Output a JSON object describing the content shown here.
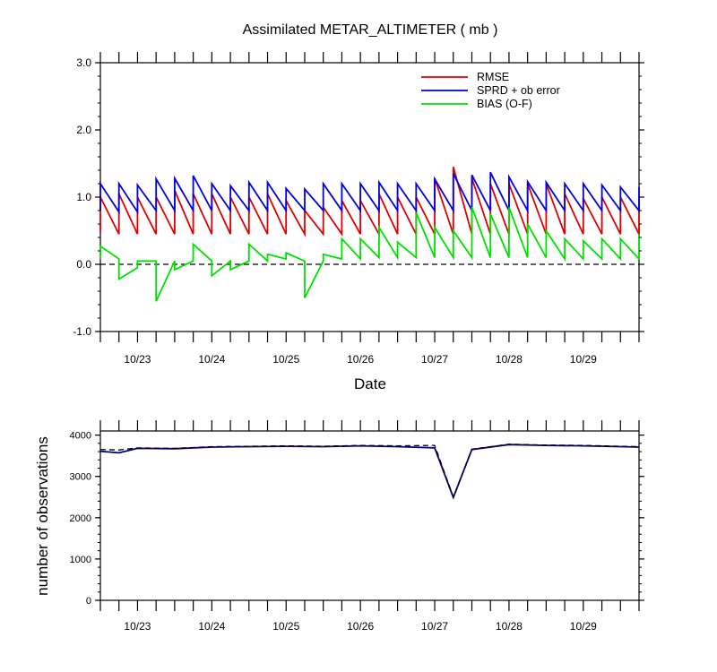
{
  "chart_data": [
    {
      "type": "line",
      "title": "Assimilated METAR_ALTIMETER ( mb )",
      "xlabel": "Date",
      "ylabel": "",
      "ylim": [
        -1.0,
        3.0
      ],
      "xlim": [
        "10/22 12:00",
        "10/29 18:00"
      ],
      "yticks": [
        "-1.0",
        "0.0",
        "1.0",
        "2.0",
        "3.0"
      ],
      "xticks": [
        "10/23",
        "10/24",
        "10/25",
        "10/26",
        "10/27",
        "10/28",
        "10/29"
      ],
      "reference_line": 0,
      "legend_position": "top-right",
      "x": [
        "10/22 12:00",
        "10/22 18:00",
        "10/23 00:00",
        "10/23 06:00",
        "10/23 12:00",
        "10/23 18:00",
        "10/24 00:00",
        "10/24 06:00",
        "10/24 12:00",
        "10/24 18:00",
        "10/25 00:00",
        "10/25 06:00",
        "10/25 12:00",
        "10/25 18:00",
        "10/26 00:00",
        "10/26 06:00",
        "10/26 12:00",
        "10/26 18:00",
        "10/27 00:00",
        "10/27 06:00",
        "10/27 12:00",
        "10/27 18:00",
        "10/28 00:00",
        "10/28 06:00",
        "10/28 12:00",
        "10/28 18:00",
        "10/29 00:00",
        "10/29 06:00",
        "10/29 12:00",
        "10/29 18:00"
      ],
      "series": [
        {
          "name": "RMSE",
          "color": "#e00000",
          "prior": [
            0.47,
            0.45,
            0.45,
            0.45,
            0.45,
            0.45,
            0.45,
            0.45,
            0.45,
            0.45,
            0.45,
            0.45,
            0.45,
            0.45,
            0.45,
            0.45,
            0.45,
            0.45,
            0.45,
            0.45,
            0.45,
            0.45,
            0.45,
            0.45,
            0.45,
            0.45,
            0.45,
            0.45,
            0.45,
            0.45
          ],
          "posterior": [
            1.0,
            1.05,
            1.0,
            1.0,
            1.1,
            1.05,
            1.05,
            1.0,
            1.0,
            1.05,
            0.95,
            0.8,
            0.85,
            0.95,
            0.95,
            1.05,
            1.0,
            1.0,
            1.28,
            1.45,
            1.28,
            1.2,
            1.2,
            1.2,
            1.2,
            1.05,
            0.98,
            1.0,
            1.0,
            1.0
          ]
        },
        {
          "name": "SPRD + ob error",
          "color": "#0000e0",
          "prior": [
            0.8,
            0.78,
            0.78,
            0.8,
            0.8,
            0.8,
            0.8,
            0.8,
            0.8,
            0.8,
            0.8,
            0.8,
            0.8,
            0.8,
            0.8,
            0.8,
            0.8,
            0.8,
            0.8,
            0.8,
            0.8,
            0.8,
            0.8,
            0.8,
            0.8,
            0.8,
            0.8,
            0.8,
            0.8,
            0.8
          ],
          "posterior": [
            1.2,
            1.2,
            1.18,
            1.27,
            1.28,
            1.32,
            1.2,
            1.17,
            1.22,
            1.22,
            1.13,
            1.12,
            1.2,
            1.2,
            1.2,
            1.22,
            1.2,
            1.2,
            1.27,
            1.35,
            1.33,
            1.37,
            1.3,
            1.23,
            1.22,
            1.2,
            1.2,
            1.18,
            1.15,
            1.15
          ]
        },
        {
          "name": "BIAS (O-F)",
          "color": "#00e000",
          "prior": [
            0.08,
            0.08,
            -0.05,
            0.05,
            0.05,
            0.05,
            0.05,
            0.05,
            0.05,
            0.05,
            0.08,
            0.05,
            0.05,
            0.08,
            0.08,
            0.1,
            0.1,
            0.1,
            0.1,
            0.1,
            0.1,
            0.1,
            0.1,
            0.1,
            0.1,
            0.08,
            0.08,
            0.08,
            0.08,
            0.08
          ],
          "posterior": [
            0.27,
            -0.22,
            0.05,
            -0.55,
            -0.08,
            0.3,
            -0.17,
            -0.08,
            0.3,
            0.15,
            0.17,
            -0.5,
            0.15,
            0.38,
            0.38,
            0.55,
            0.33,
            0.77,
            0.55,
            0.5,
            0.85,
            0.75,
            0.85,
            0.6,
            0.5,
            0.38,
            0.35,
            0.38,
            0.38,
            0.45
          ]
        }
      ]
    },
    {
      "type": "line",
      "title": "",
      "xlabel": "",
      "ylabel": "number of observations",
      "ylim": [
        0,
        4100
      ],
      "yticks": [
        "0",
        "1000",
        "2000",
        "3000",
        "4000"
      ],
      "xticks": [
        "10/23",
        "10/24",
        "10/25",
        "10/26",
        "10/27",
        "10/28",
        "10/29"
      ],
      "series": [
        {
          "name": "",
          "style": "solid",
          "color": "#000080",
          "x": [
            "10/22 12:00",
            "10/22 18:00",
            "10/23 00:00",
            "10/23 12:00",
            "10/24 00:00",
            "10/24 12:00",
            "10/25 00:00",
            "10/25 12:00",
            "10/26 00:00",
            "10/26 12:00",
            "10/27 00:00",
            "10/27 06:00",
            "10/27 12:00",
            "10/28 00:00",
            "10/28 12:00",
            "10/29 00:00",
            "10/29 12:00",
            "10/29 18:00"
          ],
          "values": [
            3610,
            3570,
            3680,
            3670,
            3710,
            3720,
            3730,
            3720,
            3740,
            3720,
            3690,
            2490,
            3650,
            3770,
            3750,
            3740,
            3720,
            3710
          ]
        },
        {
          "name": "",
          "style": "dashed",
          "color": "#000000",
          "x": [
            "10/22 12:00",
            "10/22 18:00",
            "10/23 00:00",
            "10/23 12:00",
            "10/24 00:00",
            "10/24 12:00",
            "10/25 00:00",
            "10/25 12:00",
            "10/26 00:00",
            "10/26 12:00",
            "10/27 00:00",
            "10/27 06:00",
            "10/27 12:00",
            "10/28 00:00",
            "10/28 12:00",
            "10/29 00:00",
            "10/29 12:00",
            "10/29 18:00"
          ],
          "values": [
            3650,
            3640,
            3690,
            3680,
            3720,
            3730,
            3740,
            3730,
            3750,
            3740,
            3750,
            2500,
            3660,
            3780,
            3760,
            3750,
            3730,
            3720
          ]
        }
      ]
    }
  ]
}
